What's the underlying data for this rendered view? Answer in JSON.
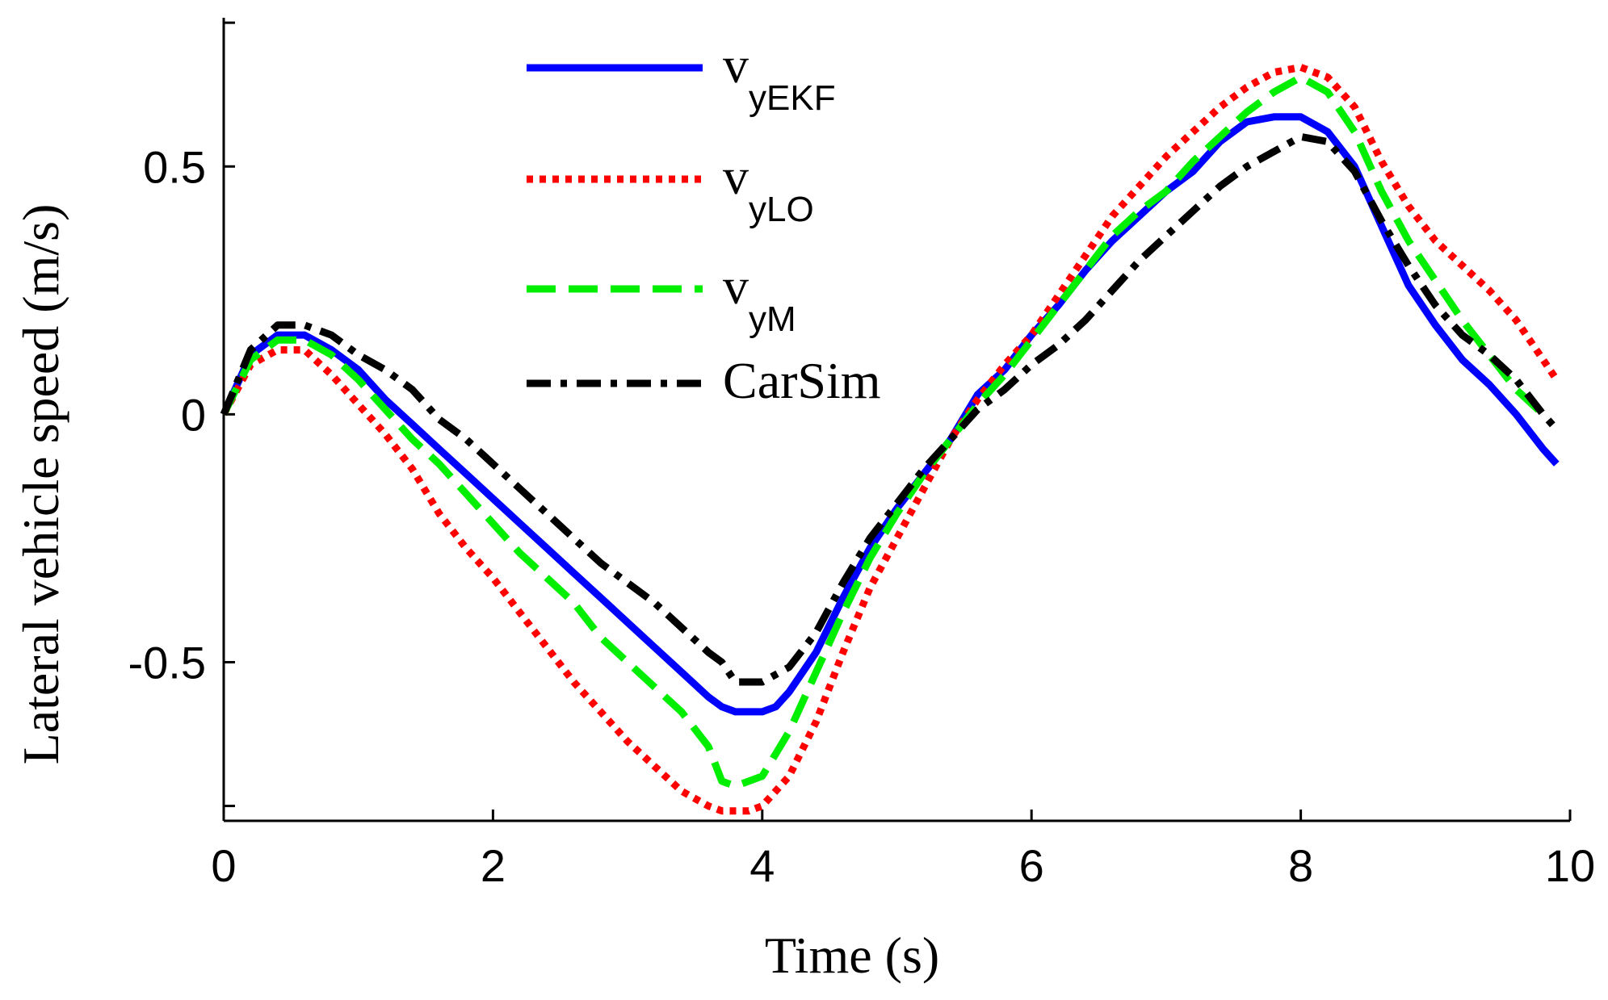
{
  "chart_data": {
    "type": "line",
    "title": "",
    "xlabel": "Time (s)",
    "ylabel": "Lateral vehicle speed (m/s)",
    "xlim": [
      0,
      10
    ],
    "ylim": [
      -0.82,
      0.8
    ],
    "x_ticks": [
      0,
      2,
      4,
      6,
      8,
      10
    ],
    "x_tick_labels": [
      "0",
      "2",
      "4",
      "6",
      "8",
      "10"
    ],
    "y_ticks": [
      -0.5,
      0,
      0.5
    ],
    "y_tick_labels": [
      "-0.5",
      "0",
      "0.5"
    ],
    "grid": false,
    "legend_position": "top-center",
    "series": [
      {
        "name": "v",
        "name_subscript": "yEKF",
        "color": "#0000ff",
        "style": "solid",
        "x": [
          0,
          0.2,
          0.4,
          0.6,
          0.8,
          1.0,
          1.2,
          1.4,
          1.6,
          1.8,
          2.0,
          2.2,
          2.4,
          2.6,
          2.8,
          3.0,
          3.2,
          3.4,
          3.6,
          3.7,
          3.8,
          4.0,
          4.1,
          4.2,
          4.4,
          4.6,
          4.8,
          5.0,
          5.2,
          5.4,
          5.6,
          5.8,
          6.0,
          6.2,
          6.4,
          6.6,
          6.8,
          7.0,
          7.2,
          7.4,
          7.6,
          7.8,
          8.0,
          8.2,
          8.4,
          8.6,
          8.8,
          9.0,
          9.2,
          9.4,
          9.6,
          9.8,
          9.9
        ],
        "values": [
          0.0,
          0.12,
          0.16,
          0.16,
          0.13,
          0.09,
          0.03,
          -0.02,
          -0.07,
          -0.12,
          -0.17,
          -0.22,
          -0.27,
          -0.32,
          -0.37,
          -0.42,
          -0.47,
          -0.52,
          -0.57,
          -0.59,
          -0.6,
          -0.6,
          -0.59,
          -0.56,
          -0.48,
          -0.37,
          -0.27,
          -0.19,
          -0.12,
          -0.05,
          0.04,
          0.09,
          0.16,
          0.22,
          0.29,
          0.35,
          0.4,
          0.45,
          0.49,
          0.55,
          0.59,
          0.6,
          0.6,
          0.57,
          0.5,
          0.38,
          0.26,
          0.18,
          0.11,
          0.06,
          0.0,
          -0.07,
          -0.1
        ]
      },
      {
        "name": "v",
        "name_subscript": "yLO",
        "color": "#ff0000",
        "style": "dotted",
        "x": [
          0,
          0.2,
          0.4,
          0.6,
          0.8,
          1.0,
          1.2,
          1.4,
          1.6,
          1.8,
          2.0,
          2.2,
          2.4,
          2.6,
          2.8,
          3.0,
          3.2,
          3.4,
          3.6,
          3.7,
          3.8,
          3.9,
          4.0,
          4.2,
          4.4,
          4.6,
          4.8,
          5.0,
          5.2,
          5.4,
          5.6,
          5.8,
          6.0,
          6.2,
          6.4,
          6.6,
          6.8,
          7.0,
          7.2,
          7.4,
          7.6,
          7.8,
          8.0,
          8.2,
          8.4,
          8.6,
          8.8,
          9.0,
          9.2,
          9.4,
          9.6,
          9.8,
          9.9
        ],
        "values": [
          0.0,
          0.1,
          0.13,
          0.13,
          0.08,
          0.02,
          -0.04,
          -0.11,
          -0.2,
          -0.27,
          -0.33,
          -0.4,
          -0.47,
          -0.54,
          -0.6,
          -0.66,
          -0.71,
          -0.76,
          -0.79,
          -0.8,
          -0.8,
          -0.8,
          -0.79,
          -0.73,
          -0.62,
          -0.48,
          -0.35,
          -0.25,
          -0.15,
          -0.05,
          0.03,
          0.1,
          0.16,
          0.24,
          0.32,
          0.4,
          0.46,
          0.52,
          0.57,
          0.62,
          0.66,
          0.69,
          0.7,
          0.68,
          0.62,
          0.51,
          0.42,
          0.35,
          0.3,
          0.25,
          0.19,
          0.11,
          0.07
        ]
      },
      {
        "name": "v",
        "name_subscript": "yM",
        "color": "#00ee00",
        "style": "dashed",
        "x": [
          0,
          0.2,
          0.4,
          0.6,
          0.8,
          1.0,
          1.2,
          1.4,
          1.6,
          1.8,
          2.0,
          2.2,
          2.4,
          2.6,
          2.8,
          3.0,
          3.2,
          3.4,
          3.6,
          3.7,
          3.8,
          4.0,
          4.2,
          4.4,
          4.6,
          4.8,
          5.0,
          5.2,
          5.4,
          5.6,
          5.8,
          6.0,
          6.2,
          6.4,
          6.6,
          6.8,
          7.0,
          7.2,
          7.4,
          7.6,
          7.8,
          8.0,
          8.2,
          8.4,
          8.6,
          8.8,
          9.0,
          9.2,
          9.4,
          9.6,
          9.8
        ],
        "values": [
          0.0,
          0.11,
          0.15,
          0.15,
          0.12,
          0.07,
          0.01,
          -0.05,
          -0.1,
          -0.16,
          -0.22,
          -0.28,
          -0.33,
          -0.38,
          -0.45,
          -0.5,
          -0.55,
          -0.6,
          -0.67,
          -0.74,
          -0.75,
          -0.73,
          -0.64,
          -0.52,
          -0.4,
          -0.29,
          -0.2,
          -0.12,
          -0.05,
          0.02,
          0.08,
          0.15,
          0.22,
          0.29,
          0.36,
          0.41,
          0.45,
          0.51,
          0.56,
          0.61,
          0.65,
          0.68,
          0.65,
          0.57,
          0.45,
          0.35,
          0.27,
          0.19,
          0.12,
          0.05,
          0.0
        ]
      },
      {
        "name": "CarSim",
        "color": "#000000",
        "style": "dashdot",
        "x": [
          0,
          0.2,
          0.4,
          0.6,
          0.8,
          1.0,
          1.2,
          1.4,
          1.6,
          1.8,
          2.0,
          2.2,
          2.4,
          2.6,
          2.8,
          3.0,
          3.2,
          3.4,
          3.6,
          3.7,
          3.8,
          4.0,
          4.2,
          4.4,
          4.6,
          4.8,
          5.0,
          5.2,
          5.4,
          5.6,
          5.8,
          6.0,
          6.2,
          6.4,
          6.6,
          6.8,
          7.0,
          7.2,
          7.4,
          7.6,
          7.8,
          8.0,
          8.2,
          8.4,
          8.6,
          8.8,
          9.0,
          9.2,
          9.4,
          9.6,
          9.8,
          9.9
        ],
        "values": [
          0.0,
          0.13,
          0.18,
          0.18,
          0.16,
          0.12,
          0.09,
          0.05,
          -0.01,
          -0.05,
          -0.1,
          -0.15,
          -0.2,
          -0.25,
          -0.3,
          -0.34,
          -0.38,
          -0.43,
          -0.48,
          -0.5,
          -0.54,
          -0.54,
          -0.51,
          -0.44,
          -0.34,
          -0.25,
          -0.18,
          -0.11,
          -0.05,
          0.01,
          0.05,
          0.1,
          0.14,
          0.19,
          0.25,
          0.31,
          0.36,
          0.41,
          0.46,
          0.5,
          0.53,
          0.56,
          0.55,
          0.49,
          0.39,
          0.3,
          0.22,
          0.16,
          0.12,
          0.07,
          0.0,
          -0.03
        ]
      }
    ]
  }
}
